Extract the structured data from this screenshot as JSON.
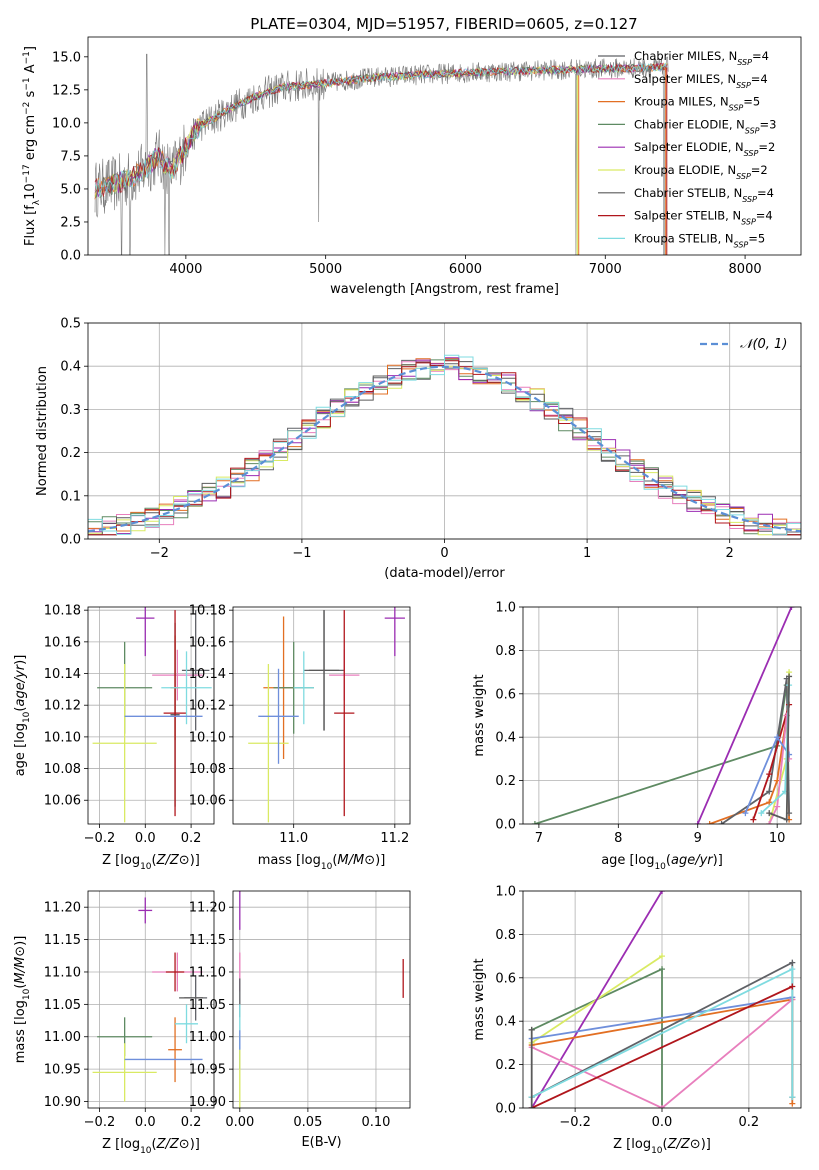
{
  "figure": {
    "title": "PLATE=0304, MJD=51957, FIBERID=0605, z=0.127"
  },
  "colors": {
    "Chabrier MILES": "#5f6166",
    "Salpeter MILES": "#e87fbd",
    "Kroupa MILES": "#e26f23",
    "Chabrier ELODIE": "#5e8a62",
    "Salpeter ELODIE": "#9b2db2",
    "Kroupa ELODIE": "#d9ea63",
    "Chabrier STELIB": "#5a5a5a",
    "Salpeter STELIB": "#b0161c",
    "Kroupa STELIB": "#7fdbe0",
    "Extra blue": "#6f8fdb",
    "normal": "#5b8fd6"
  },
  "legend": [
    {
      "key": "Chabrier MILES",
      "label": "Chabrier MILES, N_SSP=4",
      "name": "Chabrier MILES, N",
      "n": "4"
    },
    {
      "key": "Salpeter MILES",
      "label": "Salpeter MILES, N_SSP=4",
      "name": "Salpeter MILES, N",
      "n": "4"
    },
    {
      "key": "Kroupa MILES",
      "label": "Kroupa MILES, N_SSP=5",
      "name": "Kroupa MILES, N",
      "n": "5"
    },
    {
      "key": "Chabrier ELODIE",
      "label": "Chabrier ELODIE, N_SSP=3",
      "name": "Chabrier ELODIE, N",
      "n": "3"
    },
    {
      "key": "Salpeter ELODIE",
      "label": "Salpeter ELODIE, N_SSP=2",
      "name": "Salpeter ELODIE, N",
      "n": "2"
    },
    {
      "key": "Kroupa ELODIE",
      "label": "Kroupa ELODIE, N_SSP=2",
      "name": "Kroupa ELODIE, N",
      "n": "2"
    },
    {
      "key": "Chabrier STELIB",
      "label": "Chabrier STELIB, N_SSP=4",
      "name": "Chabrier STELIB, N",
      "n": "4"
    },
    {
      "key": "Salpeter STELIB",
      "label": "Salpeter STELIB, N_SSP=4",
      "name": "Salpeter STELIB, N",
      "n": "4"
    },
    {
      "key": "Kroupa STELIB",
      "label": "Kroupa STELIB, N_SSP=5",
      "name": "Kroupa STELIB, N",
      "n": "5"
    }
  ],
  "chart_data": [
    {
      "id": "spectrum",
      "type": "line",
      "xlabel": "wavelength [Angstrom, rest frame]",
      "ylabel": "Flux [f_λ10^-17 erg cm^-2 s^-1 A^-1]",
      "xlim": [
        3300,
        8400
      ],
      "ylim": [
        0,
        16.5
      ],
      "xticks": [
        4000,
        5000,
        6000,
        7000,
        8000
      ],
      "yticks": [
        0.0,
        2.5,
        5.0,
        7.5,
        10.0,
        12.5,
        15.0
      ],
      "grid": false,
      "legend_position": "top-right",
      "continuum": {
        "x": [
          3350,
          3500,
          3600,
          3700,
          3800,
          3900,
          4000,
          4100,
          4200,
          4300,
          4500,
          4700,
          5000,
          5300,
          5600,
          6000,
          6300,
          6600,
          7000,
          7400
        ],
        "y": [
          5.0,
          5.4,
          5.8,
          6.4,
          7.5,
          6.3,
          8.2,
          9.8,
          10.3,
          11.0,
          12.0,
          12.7,
          13.0,
          13.4,
          13.6,
          13.8,
          13.9,
          14.0,
          14.1,
          14.2
        ]
      },
      "observed_range": [
        3350,
        7450
      ],
      "model_range": [
        3350,
        7450
      ],
      "dropouts": [
        {
          "x": 3540,
          "y": 0
        },
        {
          "x": 3600,
          "y": 0
        },
        {
          "x": 3850,
          "y": 0
        },
        {
          "x": 3880,
          "y": 0
        },
        {
          "x": 4950,
          "y": 2.5
        },
        {
          "x": 6790,
          "y": 0
        },
        {
          "x": 7420,
          "y": 0
        }
      ]
    },
    {
      "id": "residuals",
      "type": "histogram",
      "xlabel": "(data-model)/error",
      "ylabel": "Normed distribution",
      "xlim": [
        -2.5,
        2.5
      ],
      "ylim": [
        0,
        0.5
      ],
      "xticks": [
        -2,
        -1,
        0,
        1,
        2
      ],
      "yticks": [
        0.0,
        0.1,
        0.2,
        0.3,
        0.4,
        0.5
      ],
      "grid": true,
      "bin_width": 0.1,
      "legend": "𝒩(0, 1)",
      "legend_position": "top-right"
    },
    {
      "id": "age_vs_Z",
      "type": "scatter",
      "xlabel": "Z [log10(Z/Z⊙)]",
      "ylabel": "age  [log10(age/yr)]",
      "xlim": [
        -0.25,
        0.3
      ],
      "ylim": [
        10.045,
        10.182
      ],
      "xticks": [
        -0.2,
        0.0,
        0.2
      ],
      "yticks": [
        10.06,
        10.08,
        10.1,
        10.12,
        10.14,
        10.16,
        10.18
      ],
      "grid": true,
      "points": [
        {
          "key": "Chabrier MILES",
          "x": 0.22,
          "xerr": 0.06,
          "y": 10.142,
          "yerr": 0.038
        },
        {
          "key": "Salpeter MILES",
          "x": 0.14,
          "xerr": 0.11,
          "y": 10.139,
          "yerr": 0.016
        },
        {
          "key": "Kroupa MILES",
          "x": 0.13,
          "xerr": 0.02,
          "y": 10.131,
          "yerr": 0.033
        },
        {
          "key": "Chabrier ELODIE",
          "x": -0.09,
          "xerr": 0.12,
          "y": 10.131,
          "yerr": 0.029
        },
        {
          "key": "Salpeter ELODIE",
          "x": 0.0,
          "xerr": 0.04,
          "y": 10.175,
          "yerr": 0.024
        },
        {
          "key": "Kroupa ELODIE",
          "x": -0.09,
          "xerr": 0.14,
          "y": 10.096,
          "yerr": 0.05
        },
        {
          "key": "Chabrier STELIB",
          "x": 0.13,
          "xerr": 0.02,
          "y": 10.114,
          "yerr": 0.058
        },
        {
          "key": "Salpeter STELIB",
          "x": 0.13,
          "xerr": 0.05,
          "y": 10.115,
          "yerr": 0.065
        },
        {
          "key": "Kroupa STELIB",
          "x": 0.18,
          "xerr": 0.11,
          "y": 10.131,
          "yerr": 0.023
        },
        {
          "key": "Extra blue",
          "x": 0.08,
          "xerr": 0.17,
          "y": 10.113,
          "yerr": 0.0
        }
      ]
    },
    {
      "id": "age_vs_mass",
      "type": "scatter",
      "xlabel": "mass [log10(M/M⊙)]",
      "ylabel": "",
      "xlim": [
        10.88,
        11.23
      ],
      "ylim": [
        10.045,
        10.182
      ],
      "xticks": [
        11.0,
        11.2
      ],
      "yticks": [
        10.06,
        10.08,
        10.1,
        10.12,
        10.14,
        10.16,
        10.18
      ],
      "grid": true,
      "points": [
        {
          "key": "Chabrier MILES",
          "x": 11.06,
          "xerr": 0.04,
          "y": 10.142,
          "yerr": 0.038
        },
        {
          "key": "Salpeter MILES",
          "x": 11.1,
          "xerr": 0.03,
          "y": 10.139,
          "yerr": 0.016
        },
        {
          "key": "Kroupa MILES",
          "x": 10.98,
          "xerr": 0.04,
          "y": 10.131,
          "yerr": 0.045
        },
        {
          "key": "Chabrier ELODIE",
          "x": 11.0,
          "xerr": 0.04,
          "y": 10.131,
          "yerr": 0.029
        },
        {
          "key": "Salpeter ELODIE",
          "x": 11.2,
          "xerr": 0.02,
          "y": 10.175,
          "yerr": 0.024
        },
        {
          "key": "Kroupa ELODIE",
          "x": 10.95,
          "xerr": 0.04,
          "y": 10.096,
          "yerr": 0.05
        },
        {
          "key": "Chabrier STELIB",
          "x": 11.06,
          "xerr": 0.03,
          "y": 10.142,
          "yerr": 0.038
        },
        {
          "key": "Salpeter STELIB",
          "x": 11.1,
          "xerr": 0.02,
          "y": 10.115,
          "yerr": 0.065
        },
        {
          "key": "Kroupa STELIB",
          "x": 11.02,
          "xerr": 0.02,
          "y": 10.131,
          "yerr": 0.023
        },
        {
          "key": "Extra blue",
          "x": 10.97,
          "xerr": 0.04,
          "y": 10.113,
          "yerr": 0.03
        }
      ]
    },
    {
      "id": "mass_weight_vs_age",
      "type": "line",
      "xlabel": "age  [log10(age/yr)]",
      "ylabel": "mass weight",
      "xlim": [
        6.8,
        10.3
      ],
      "ylim": [
        0,
        1.0
      ],
      "xticks": [
        7,
        8,
        9,
        10
      ],
      "yticks": [
        0.0,
        0.2,
        0.4,
        0.6,
        0.8,
        1.0
      ],
      "grid": true,
      "series": [
        {
          "key": "Chabrier ELODIE",
          "x": [
            6.95,
            10.0,
            10.12
          ],
          "y": [
            0.0,
            0.36,
            0.64
          ]
        },
        {
          "key": "Salpeter ELODIE",
          "x": [
            9.0,
            10.18
          ],
          "y": [
            0.0,
            1.0
          ]
        },
        {
          "key": "Kroupa ELODIE",
          "x": [
            9.9,
            10.12,
            10.15
          ],
          "y": [
            0.0,
            0.3,
            0.7
          ]
        },
        {
          "key": "Kroupa MILES",
          "x": [
            9.15,
            9.9,
            10.0,
            10.12,
            10.15
          ],
          "y": [
            0.0,
            0.1,
            0.2,
            0.5,
            0.02
          ]
        },
        {
          "key": "Chabrier MILES",
          "x": [
            9.3,
            9.9,
            10.12,
            10.15
          ],
          "y": [
            0.0,
            0.15,
            0.67,
            0.05
          ]
        },
        {
          "key": "Salpeter STELIB",
          "x": [
            9.7,
            9.9,
            10.15
          ],
          "y": [
            0.02,
            0.23,
            0.55
          ]
        },
        {
          "key": "Salpeter MILES",
          "x": [
            9.9,
            10.0,
            10.12,
            10.15
          ],
          "y": [
            0.0,
            0.08,
            0.5,
            0.3
          ]
        },
        {
          "key": "Extra blue",
          "x": [
            9.6,
            10.0,
            10.15
          ],
          "y": [
            0.05,
            0.4,
            0.32
          ]
        },
        {
          "key": "Kroupa STELIB",
          "x": [
            9.8,
            10.1,
            10.15
          ],
          "y": [
            0.05,
            0.15,
            0.64
          ]
        },
        {
          "key": "Chabrier STELIB",
          "x": [
            9.9,
            10.12,
            10.15
          ],
          "y": [
            0.05,
            0.02,
            0.68
          ]
        }
      ]
    },
    {
      "id": "mass_vs_Z",
      "type": "scatter",
      "xlabel": "Z [log10(Z/Z⊙)]",
      "ylabel": "mass [log10(M/M⊙)]",
      "xlim": [
        -0.25,
        0.3
      ],
      "ylim": [
        10.89,
        11.225
      ],
      "xticks": [
        -0.2,
        0.0,
        0.2
      ],
      "yticks": [
        10.9,
        10.95,
        11.0,
        11.05,
        11.1,
        11.15,
        11.2
      ],
      "grid": true,
      "points": [
        {
          "key": "Chabrier MILES",
          "x": 0.22,
          "xerr": 0.05,
          "y": 11.06,
          "yerr": 0.035
        },
        {
          "key": "Salpeter MILES",
          "x": 0.14,
          "xerr": 0.11,
          "y": 11.1,
          "yerr": 0.03
        },
        {
          "key": "Kroupa MILES",
          "x": 0.13,
          "xerr": 0.03,
          "y": 10.98,
          "yerr": 0.05
        },
        {
          "key": "Chabrier ELODIE",
          "x": -0.09,
          "xerr": 0.12,
          "y": 11.0,
          "yerr": 0.03
        },
        {
          "key": "Salpeter ELODIE",
          "x": 0.0,
          "xerr": 0.03,
          "y": 11.195,
          "yerr": 0.02
        },
        {
          "key": "Kroupa ELODIE",
          "x": -0.09,
          "xerr": 0.14,
          "y": 10.945,
          "yerr": 0.045
        },
        {
          "key": "Chabrier STELIB",
          "x": 0.2,
          "xerr": 0.0,
          "y": 11.06,
          "yerr": 0.0
        },
        {
          "key": "Salpeter STELIB",
          "x": 0.13,
          "xerr": 0.04,
          "y": 11.1,
          "yerr": 0.03
        },
        {
          "key": "Kroupa STELIB",
          "x": 0.18,
          "xerr": 0.05,
          "y": 11.02,
          "yerr": 0.03
        },
        {
          "key": "Extra blue",
          "x": 0.08,
          "xerr": 0.17,
          "y": 10.965,
          "yerr": 0.0
        }
      ]
    },
    {
      "id": "mass_vs_EBV",
      "type": "scatter",
      "xlabel": "E(B-V)",
      "ylabel": "",
      "xlim": [
        -0.005,
        0.125
      ],
      "ylim": [
        10.89,
        11.225
      ],
      "xticks": [
        0.0,
        0.05,
        0.1
      ],
      "yticks": [
        10.9,
        10.95,
        11.0,
        11.05,
        11.1,
        11.15,
        11.2
      ],
      "grid": true,
      "points": [
        {
          "key": "Salpeter ELODIE",
          "x": 0.0,
          "xerr": 0.0,
          "y": 11.195,
          "yerr": 0.03
        },
        {
          "key": "Salpeter MILES",
          "x": 0.0,
          "xerr": 0.0,
          "y": 11.1,
          "yerr": 0.03
        },
        {
          "key": "Chabrier MILES",
          "x": 0.0,
          "xerr": 0.0,
          "y": 11.06,
          "yerr": 0.03
        },
        {
          "key": "Kroupa STELIB",
          "x": 0.0,
          "xerr": 0.0,
          "y": 11.0,
          "yerr": 0.05
        },
        {
          "key": "Extra blue",
          "x": 0.0,
          "xerr": 0.0,
          "y": 10.98,
          "yerr": 0.03
        },
        {
          "key": "Kroupa ELODIE",
          "x": 0.0,
          "xerr": 0.0,
          "y": 10.93,
          "yerr": 0.05
        },
        {
          "key": "Salpeter STELIB",
          "x": 0.12,
          "xerr": 0.0,
          "y": 11.09,
          "yerr": 0.03
        }
      ]
    },
    {
      "id": "mass_weight_vs_Z",
      "type": "line",
      "xlabel": "Z [log10(Z/Z⊙)]",
      "ylabel": "mass weight",
      "xlim": [
        -0.32,
        0.32
      ],
      "ylim": [
        0,
        1.0
      ],
      "xticks": [
        -0.2,
        0.0,
        0.2
      ],
      "yticks": [
        0.0,
        0.2,
        0.4,
        0.6,
        0.8,
        1.0
      ],
      "grid": true,
      "series": [
        {
          "key": "Chabrier ELODIE",
          "x": [
            -0.3,
            0.0,
            0.0
          ],
          "y": [
            0.36,
            0.64,
            0.0
          ]
        },
        {
          "key": "Kroupa ELODIE",
          "x": [
            -0.3,
            0.0
          ],
          "y": [
            0.3,
            0.7
          ]
        },
        {
          "key": "Salpeter ELODIE",
          "x": [
            -0.3,
            0.0
          ],
          "y": [
            0.0,
            1.0
          ]
        },
        {
          "key": "Kroupa MILES",
          "x": [
            -0.3,
            0.3,
            0.3
          ],
          "y": [
            0.29,
            0.5,
            0.02
          ]
        },
        {
          "key": "Extra blue",
          "x": [
            -0.3,
            0.3
          ],
          "y": [
            0.32,
            0.51
          ]
        },
        {
          "key": "Salpeter MILES",
          "x": [
            -0.3,
            0.0,
            0.3
          ],
          "y": [
            0.28,
            0.0,
            0.5
          ]
        },
        {
          "key": "Chabrier MILES",
          "x": [
            -0.3,
            0.3,
            0.3
          ],
          "y": [
            0.05,
            0.67,
            0.05
          ]
        },
        {
          "key": "Kroupa STELIB",
          "x": [
            -0.3,
            0.3,
            0.3
          ],
          "y": [
            0.05,
            0.64,
            0.05
          ]
        },
        {
          "key": "Salpeter STELIB",
          "x": [
            -0.3,
            0.3
          ],
          "y": [
            0.0,
            0.56
          ]
        },
        {
          "key": "Chabrier STELIB",
          "x": [
            -0.3,
            -0.3
          ],
          "y": [
            0.0,
            0.36
          ]
        }
      ]
    }
  ]
}
